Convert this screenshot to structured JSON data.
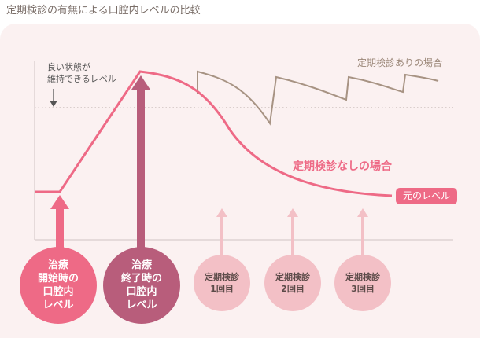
{
  "title": "定期検診の有無による口腔内レベルの比較",
  "annotations": {
    "good_state": "良い状態が\n維持できるレベル",
    "with_checkups": "定期検診ありの場合",
    "without_checkups": "定期検診なしの場合",
    "base_level": "元のレベル"
  },
  "circles": {
    "treatment_start": "治療\n開始時の\n口腔内\nレベル",
    "treatment_end": "治療\n終了時の\n口腔内\nレベル",
    "checkup_1": "定期検診\n1回目",
    "checkup_2": "定期検診\n2回目",
    "checkup_3": "定期検診\n3回目"
  },
  "colors": {
    "pink": "#ee6a86",
    "dark_pink": "#b85d7b",
    "light_pink": "#f3c0c6",
    "brown": "#a79383",
    "background": "#fbf1f1"
  }
}
